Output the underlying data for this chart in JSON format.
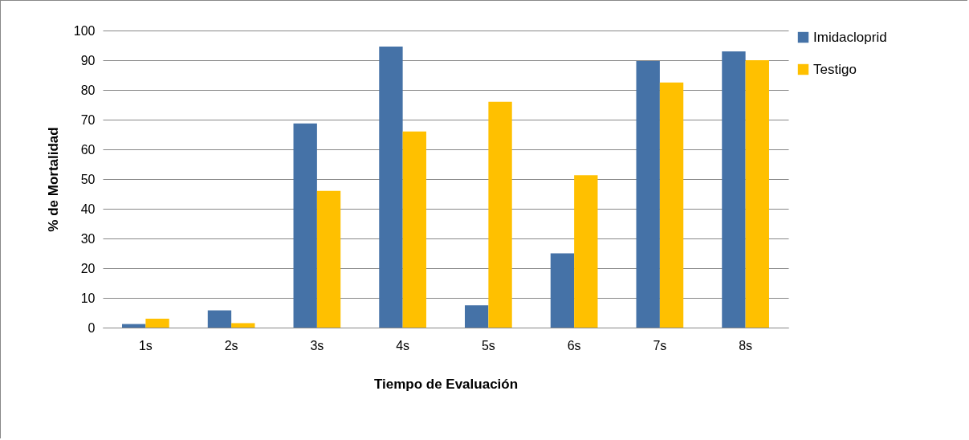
{
  "chart_data": {
    "type": "bar",
    "xlabel": "Tiempo  de  Evaluación",
    "ylabel": "% de Mortalidad",
    "categories": [
      "1s",
      "2s",
      "3s",
      "4s",
      "5s",
      "6s",
      "7s",
      "8s"
    ],
    "series": [
      {
        "name": "Imidacloprid",
        "color": "#4572a7",
        "values": [
          1.2,
          5.8,
          68.7,
          94.6,
          7.5,
          25,
          89.7,
          93
        ]
      },
      {
        "name": "Testigo",
        "color": "#ffc000",
        "values": [
          3,
          1.5,
          46,
          66,
          76,
          51.3,
          82.5,
          90
        ]
      }
    ],
    "ylim": [
      0,
      100
    ],
    "yticks": [
      0,
      10,
      20,
      30,
      40,
      50,
      60,
      70,
      80,
      90,
      100
    ],
    "grid": "y",
    "legend": "right"
  }
}
